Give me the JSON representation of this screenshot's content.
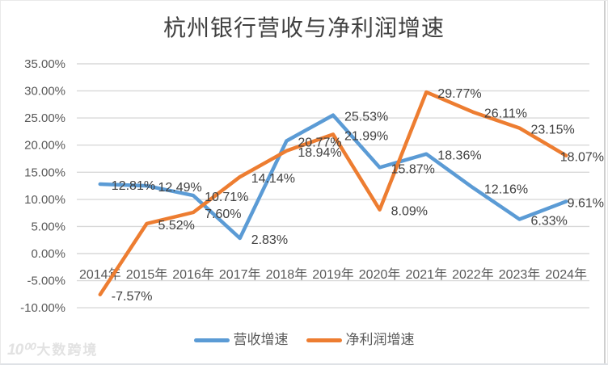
{
  "title": "杭州银行营收与净利润增速",
  "watermark": {
    "logo": "10⁰⁰",
    "text": "大数跨境"
  },
  "colors": {
    "revenue": "#5B9BD5",
    "net_profit": "#ED7D31",
    "gridline": "#D9D9D9",
    "axis_text": "#595959",
    "data_label_text": "#404040"
  },
  "chart_data": {
    "type": "line",
    "title": "杭州银行营收与净利润增速",
    "categories": [
      "2014年",
      "2015年",
      "2016年",
      "2017年",
      "2018年",
      "2019年",
      "2020年",
      "2021年",
      "2022年",
      "2023年",
      "2024年"
    ],
    "series": [
      {
        "name": "营收增速",
        "color": "#5B9BD5",
        "values": [
          12.81,
          12.49,
          10.71,
          2.83,
          20.77,
          25.53,
          15.87,
          18.36,
          12.16,
          6.33,
          9.61
        ],
        "labels": [
          "12.81%",
          "12.49%",
          "10.71%",
          "2.83%",
          "20.77%",
          "25.53%",
          "15.87%",
          "18.36%",
          "12.16%",
          "6.33%",
          "9.61%"
        ]
      },
      {
        "name": "净利润增速",
        "color": "#ED7D31",
        "values": [
          -7.57,
          5.52,
          7.6,
          14.14,
          18.94,
          21.99,
          8.09,
          29.77,
          26.11,
          23.15,
          18.07
        ],
        "labels": [
          "-7.57%",
          "5.52%",
          "7.60%",
          "14.14%",
          "18.94%",
          "21.99%",
          "8.09%",
          "29.77%",
          "26.11%",
          "23.15%",
          "18.07%"
        ]
      }
    ],
    "ylim": [
      -10,
      35
    ],
    "yticks": [
      35,
      30,
      25,
      20,
      15,
      10,
      5,
      0,
      -5,
      -10
    ],
    "ytick_labels": [
      "35.00%",
      "30.00%",
      "25.00%",
      "20.00%",
      "15.00%",
      "10.00%",
      "5.00%",
      "0.00%",
      "-5.00%",
      "-10.00%"
    ],
    "grid": true,
    "legend_position": "bottom",
    "data_labels_position": "right"
  },
  "legend": {
    "items": [
      {
        "label": "营收增速",
        "color": "#5B9BD5"
      },
      {
        "label": "净利润增速",
        "color": "#ED7D31"
      }
    ]
  }
}
